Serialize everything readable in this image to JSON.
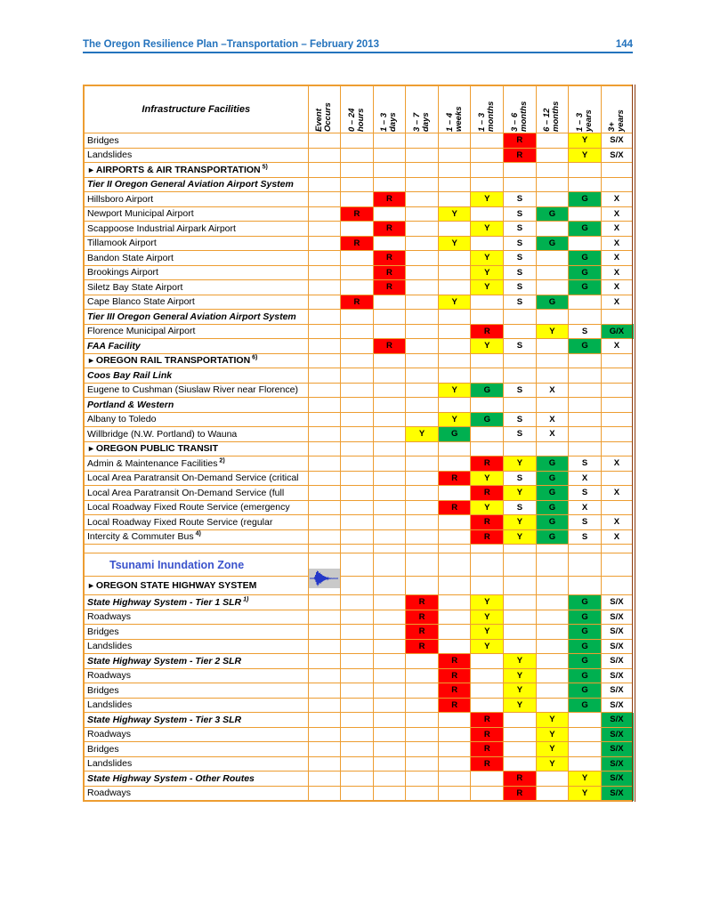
{
  "page": {
    "header": {
      "title": "The Oregon Resilience Plan –Transportation – February 2013",
      "page_number": "144"
    }
  },
  "colors": {
    "red": "#FF0000",
    "yellow": "#FFFF00",
    "green": "#00B050",
    "grid_orange": "#ED9D31",
    "right_border_brown": "#8C3A0C",
    "header_blue": "#2473BD",
    "tsunami_blue": "#3B53CC"
  },
  "icons": {
    "section_marker": "►",
    "event_occurs_icon": "seismograph-waveform"
  },
  "table": {
    "facilities_header": "Infrastructure Facilities",
    "columns": [
      "Event\nOccurs",
      "0 – 24\nhours",
      "1 – 3\ndays",
      "3 – 7\ndays",
      "1 – 4\nweeks",
      "1 – 3\nmonths",
      "3 – 6\nmonths",
      "6 – 12\nmonths",
      "1 – 3\nyears",
      "3+\nyears"
    ],
    "cell_color_codes": {
      "r": "red",
      "y": "yellow",
      "g": "green",
      "w": "white"
    },
    "rows": [
      {
        "kind": "item",
        "label": "Bridges",
        "cells": [
          "",
          "",
          "",
          "",
          "",
          "",
          "R:r",
          "",
          "Y:y",
          "S/X:w"
        ]
      },
      {
        "kind": "item",
        "label": "Landslides",
        "cells": [
          "",
          "",
          "",
          "",
          "",
          "",
          "R:r",
          "",
          "Y:y",
          "S/X:w"
        ]
      },
      {
        "kind": "section",
        "label": "AIRPORTS & AIR TRANSPORTATION",
        "sup": "5)",
        "cells": [
          "",
          "",
          "",
          "",
          "",
          "",
          "",
          "",
          "",
          ""
        ]
      },
      {
        "kind": "subsection",
        "label": "Tier II Oregon General Aviation Airport System",
        "cells": [
          "",
          "",
          "",
          "",
          "",
          "",
          "",
          "",
          "",
          ""
        ]
      },
      {
        "kind": "item",
        "label": "Hillsboro Airport",
        "cells": [
          "",
          "",
          "R:r",
          "",
          "",
          "Y:y",
          "S:w",
          "",
          "G:g",
          "X:w"
        ]
      },
      {
        "kind": "item",
        "label": "Newport Municipal Airport",
        "cells": [
          "",
          "R:r",
          "",
          "",
          "Y:y",
          "",
          "S:w",
          "G:g",
          "",
          "X:w"
        ]
      },
      {
        "kind": "item",
        "label": "Scappoose Industrial Airpark Airport",
        "cells": [
          "",
          "",
          "R:r",
          "",
          "",
          "Y:y",
          "S:w",
          "",
          "G:g",
          "X:w"
        ]
      },
      {
        "kind": "item",
        "label": "Tillamook Airport",
        "cells": [
          "",
          "R:r",
          "",
          "",
          "Y:y",
          "",
          "S:w",
          "G:g",
          "",
          "X:w"
        ]
      },
      {
        "kind": "item",
        "label": "Bandon State Airport",
        "cells": [
          "",
          "",
          "R:r",
          "",
          "",
          "Y:y",
          "S:w",
          "",
          "G:g",
          "X:w"
        ]
      },
      {
        "kind": "item",
        "label": "Brookings Airport",
        "cells": [
          "",
          "",
          "R:r",
          "",
          "",
          "Y:y",
          "S:w",
          "",
          "G:g",
          "X:w"
        ]
      },
      {
        "kind": "item",
        "label": "Siletz Bay State Airport",
        "cells": [
          "",
          "",
          "R:r",
          "",
          "",
          "Y:y",
          "S:w",
          "",
          "G:g",
          "X:w"
        ]
      },
      {
        "kind": "item",
        "label": "Cape Blanco State Airport",
        "cells": [
          "",
          "R:r",
          "",
          "",
          "Y:y",
          "",
          "S:w",
          "G:g",
          "",
          "X:w"
        ]
      },
      {
        "kind": "subsection",
        "label": "Tier III Oregon General Aviation Airport System",
        "cells": [
          "",
          "",
          "",
          "",
          "",
          "",
          "",
          "",
          "",
          ""
        ]
      },
      {
        "kind": "item",
        "label": "Florence Municipal Airport",
        "cells": [
          "",
          "",
          "",
          "",
          "",
          "R:r",
          "",
          "Y:y",
          "S:w",
          "G/X:g"
        ]
      },
      {
        "kind": "item-bi",
        "label": "FAA Facility",
        "cells": [
          "",
          "",
          "R:r",
          "",
          "",
          "Y:y",
          "S:w",
          "",
          "G:g",
          "X:w"
        ]
      },
      {
        "kind": "section",
        "label": "OREGON RAIL TRANSPORTATION",
        "sup": "6)",
        "cells": [
          "",
          "",
          "",
          "",
          "",
          "",
          "",
          "",
          "",
          ""
        ]
      },
      {
        "kind": "subsection",
        "label": "Coos Bay Rail Link",
        "cells": [
          "",
          "",
          "",
          "",
          "",
          "",
          "",
          "",
          "",
          ""
        ]
      },
      {
        "kind": "item",
        "label": "Eugene to Cushman (Siuslaw River near Florence)",
        "cells": [
          "",
          "",
          "",
          "",
          "Y:y",
          "G:g",
          "S:w",
          "X:w",
          "",
          ""
        ]
      },
      {
        "kind": "subsection",
        "label": "Portland & Western",
        "cells": [
          "",
          "",
          "",
          "",
          "",
          "",
          "",
          "",
          "",
          ""
        ]
      },
      {
        "kind": "item",
        "label": "Albany to Toledo",
        "cells": [
          "",
          "",
          "",
          "",
          "Y:y",
          "G:g",
          "S:w",
          "X:w",
          "",
          ""
        ]
      },
      {
        "kind": "item",
        "label": "Willbridge (N.W. Portland) to Wauna",
        "cells": [
          "",
          "",
          "",
          "Y:y",
          "G:g",
          "",
          "S:w",
          "X:w",
          "",
          ""
        ]
      },
      {
        "kind": "section",
        "label": "OREGON PUBLIC TRANSIT",
        "cells": [
          "",
          "",
          "",
          "",
          "",
          "",
          "",
          "",
          "",
          ""
        ]
      },
      {
        "kind": "item",
        "label": "Admin & Maintenance Facilities",
        "sup": "2)",
        "cells": [
          "",
          "",
          "",
          "",
          "",
          "R:r",
          "Y:y",
          "G:g",
          "S:w",
          "X:w"
        ]
      },
      {
        "kind": "item",
        "label": "Local Area Paratransit On-Demand Service (critical",
        "cells": [
          "",
          "",
          "",
          "",
          "R:r",
          "Y:y",
          "S:w",
          "G:g",
          "X:w",
          ""
        ]
      },
      {
        "kind": "item",
        "label": "Local Area Paratransit On-Demand Service (full",
        "cells": [
          "",
          "",
          "",
          "",
          "",
          "R:r",
          "Y:y",
          "G:g",
          "S:w",
          "X:w"
        ]
      },
      {
        "kind": "item",
        "label": "Local Roadway Fixed Route Service (emergency",
        "cells": [
          "",
          "",
          "",
          "",
          "R:r",
          "Y:y",
          "S:w",
          "G:g",
          "X:w",
          ""
        ]
      },
      {
        "kind": "item",
        "label": "Local Roadway Fixed Route Service (regular",
        "cells": [
          "",
          "",
          "",
          "",
          "",
          "R:r",
          "Y:y",
          "G:g",
          "S:w",
          "X:w"
        ]
      },
      {
        "kind": "item",
        "label": "Intercity & Commuter Bus",
        "sup": "4)",
        "cells": [
          "",
          "",
          "",
          "",
          "",
          "R:r",
          "Y:y",
          "G:g",
          "S:w",
          "X:w"
        ]
      },
      {
        "kind": "spacer",
        "label": "",
        "cells": [
          "",
          "",
          "",
          "",
          "",
          "",
          "",
          "",
          "",
          ""
        ]
      },
      {
        "kind": "tsunami",
        "label": "Tsunami Inundation Zone",
        "cells": [
          "",
          "",
          "",
          "",
          "",
          "",
          "",
          "",
          "",
          ""
        ]
      },
      {
        "kind": "oshs",
        "label": "OREGON STATE HIGHWAY SYSTEM",
        "icon": "seismograph",
        "cells": [
          "",
          "",
          "",
          "",
          "",
          "",
          "",
          "",
          "",
          ""
        ]
      },
      {
        "kind": "item-bi",
        "label": "State Highway System - Tier 1 SLR",
        "sup": "1)",
        "cells": [
          "",
          "",
          "",
          "R:r",
          "",
          "Y:y",
          "",
          "",
          "G:g",
          "S/X:w"
        ]
      },
      {
        "kind": "item",
        "label": "Roadways",
        "cells": [
          "",
          "",
          "",
          "R:r",
          "",
          "Y:y",
          "",
          "",
          "G:g",
          "S/X:w"
        ]
      },
      {
        "kind": "item",
        "label": "Bridges",
        "cells": [
          "",
          "",
          "",
          "R:r",
          "",
          "Y:y",
          "",
          "",
          "G:g",
          "S/X:w"
        ]
      },
      {
        "kind": "item",
        "label": "Landslides",
        "cells": [
          "",
          "",
          "",
          "R:r",
          "",
          "Y:y",
          "",
          "",
          "G:g",
          "S/X:w"
        ]
      },
      {
        "kind": "item-bi",
        "label": "State Highway System - Tier 2 SLR",
        "cells": [
          "",
          "",
          "",
          "",
          "R:r",
          "",
          "Y:y",
          "",
          "G:g",
          "S/X:w"
        ]
      },
      {
        "kind": "item",
        "label": "Roadways",
        "cells": [
          "",
          "",
          "",
          "",
          "R:r",
          "",
          "Y:y",
          "",
          "G:g",
          "S/X:w"
        ]
      },
      {
        "kind": "item",
        "label": "Bridges",
        "cells": [
          "",
          "",
          "",
          "",
          "R:r",
          "",
          "Y:y",
          "",
          "G:g",
          "S/X:w"
        ]
      },
      {
        "kind": "item",
        "label": "Landslides",
        "cells": [
          "",
          "",
          "",
          "",
          "R:r",
          "",
          "Y:y",
          "",
          "G:g",
          "S/X:w"
        ]
      },
      {
        "kind": "item-bi",
        "label": "State Highway System - Tier 3 SLR",
        "cells": [
          "",
          "",
          "",
          "",
          "",
          "R:r",
          "",
          "Y:y",
          "",
          "S/X:g"
        ]
      },
      {
        "kind": "item",
        "label": "Roadways",
        "cells": [
          "",
          "",
          "",
          "",
          "",
          "R:r",
          "",
          "Y:y",
          "",
          "S/X:g"
        ]
      },
      {
        "kind": "item",
        "label": "Bridges",
        "cells": [
          "",
          "",
          "",
          "",
          "",
          "R:r",
          "",
          "Y:y",
          "",
          "S/X:g"
        ]
      },
      {
        "kind": "item",
        "label": "Landslides",
        "cells": [
          "",
          "",
          "",
          "",
          "",
          "R:r",
          "",
          "Y:y",
          "",
          "S/X:g"
        ]
      },
      {
        "kind": "item-bi",
        "label": "State Highway System - Other Routes",
        "cells": [
          "",
          "",
          "",
          "",
          "",
          "",
          "R:r",
          "",
          "Y:y",
          "S/X:g"
        ]
      },
      {
        "kind": "item",
        "label": "Roadways",
        "cells": [
          "",
          "",
          "",
          "",
          "",
          "",
          "R:r",
          "",
          "Y:y",
          "S/X:g"
        ]
      }
    ]
  }
}
